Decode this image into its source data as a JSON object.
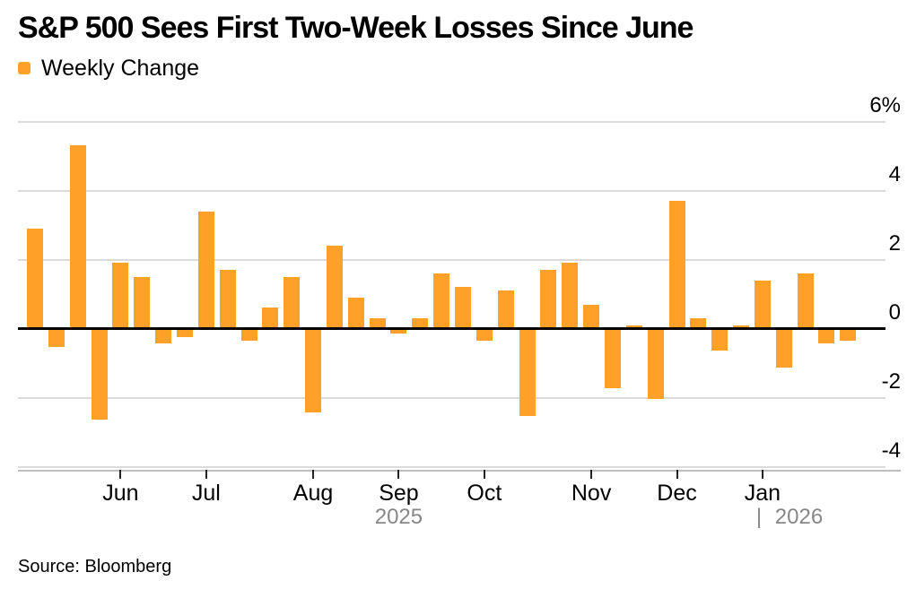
{
  "title": "S&P 500 Sees First Two-Week Losses Since June",
  "legend": {
    "label": "Weekly Change"
  },
  "source": {
    "text": "Source: Bloomberg"
  },
  "colors": {
    "bar": "#FFA028",
    "grid": "#DBDBDB",
    "zero_line": "#000000",
    "axis_line": "#BFBFBF",
    "tick": "#222222",
    "year_label": "#878787",
    "text": "#000000",
    "background": "#FFFFFF"
  },
  "chart_data": {
    "type": "bar",
    "title": "S&P 500 Sees First Two-Week Losses Since June",
    "series_name": "Weekly Change",
    "unit": "percent",
    "frequency": "weekly",
    "values": [
      2.9,
      -0.5,
      5.3,
      -2.6,
      1.9,
      1.5,
      -0.4,
      -0.2,
      3.4,
      1.7,
      -0.3,
      0.6,
      1.5,
      -2.4,
      2.4,
      0.9,
      0.3,
      -0.1,
      0.3,
      1.6,
      1.2,
      -0.3,
      1.1,
      -2.5,
      1.7,
      1.9,
      0.7,
      -1.7,
      0.1,
      -2.0,
      3.7,
      0.3,
      -0.6,
      0.1,
      1.4,
      -1.1,
      1.6,
      -0.4,
      -0.3
    ],
    "x_ticks": [
      {
        "label": "Jun",
        "index": 4
      },
      {
        "label": "Jul",
        "index": 8
      },
      {
        "label": "Aug",
        "index": 13
      },
      {
        "label": "Sep",
        "index": 17
      },
      {
        "label": "Oct",
        "index": 21
      },
      {
        "label": "Nov",
        "index": 26
      },
      {
        "label": "Dec",
        "index": 30
      },
      {
        "label": "Jan",
        "index": 34
      }
    ],
    "y_ticks": [
      {
        "label": "6%",
        "value": 6
      },
      {
        "label": "4",
        "value": 4
      },
      {
        "label": "2",
        "value": 2
      },
      {
        "label": "0",
        "value": 0
      },
      {
        "label": "-2",
        "value": -2
      },
      {
        "label": "-4",
        "value": -4
      }
    ],
    "year_labels": [
      {
        "text": "2025",
        "index": 17,
        "align": "center"
      },
      {
        "text": "| 2026",
        "index": 34,
        "align": "left"
      }
    ],
    "ylim": [
      -4.8,
      6.5
    ],
    "grid": true,
    "legend_position": "top-left",
    "y_axis_position": "right"
  }
}
